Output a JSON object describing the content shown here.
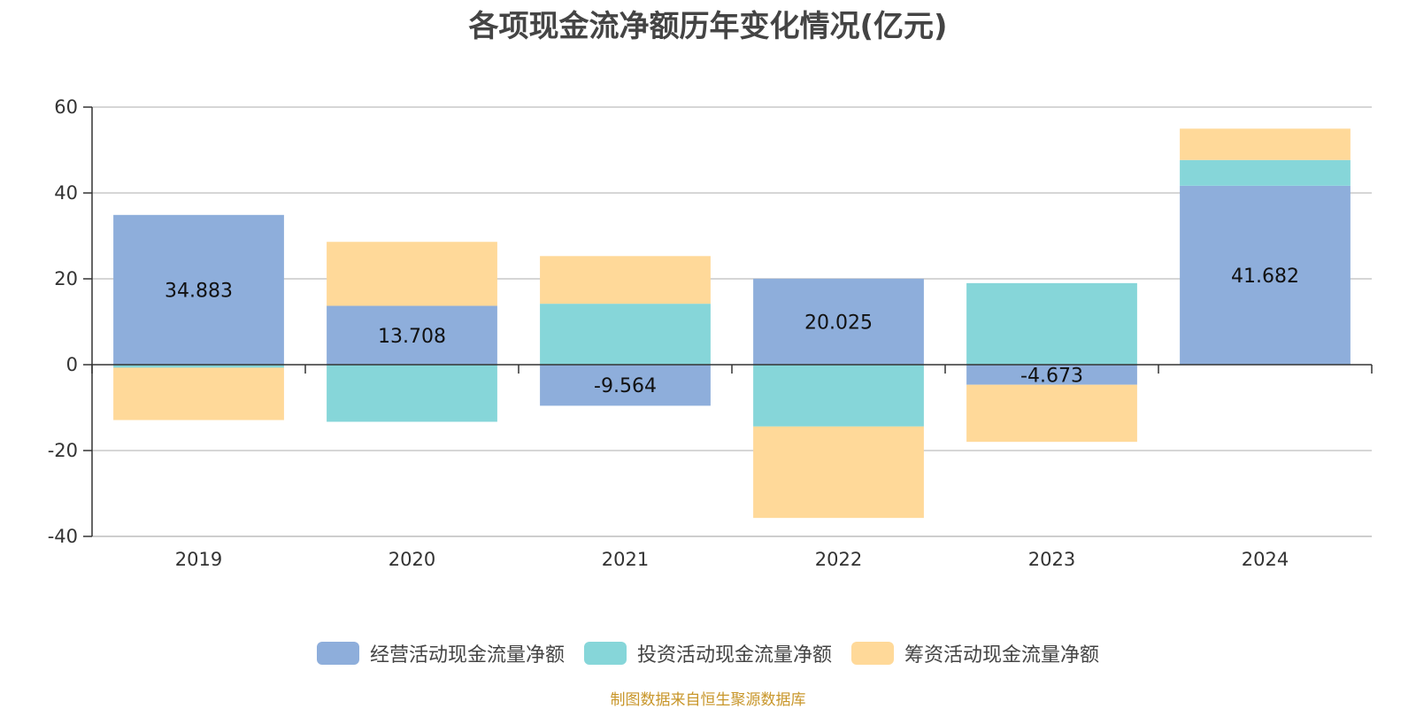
{
  "title": "各项现金流净额历年变化情况(亿元)",
  "source": "制图数据来自恒生聚源数据库",
  "colors": {
    "operating": "#8eaedb",
    "investing": "#86d6d9",
    "financing": "#ffd999",
    "source": "#c8962a"
  },
  "chart_data": {
    "type": "bar",
    "stacked": true,
    "categories": [
      "2019",
      "2020",
      "2021",
      "2022",
      "2023",
      "2024"
    ],
    "ylim": [
      -40,
      60
    ],
    "yticks": [
      60,
      40,
      20,
      0,
      -20,
      -40
    ],
    "grid": true,
    "legend_position": "bottom",
    "series": [
      {
        "name": "经营活动现金流量净额",
        "color_key": "operating",
        "values": [
          34.883,
          13.708,
          -9.564,
          20.025,
          -4.673,
          41.682
        ],
        "labels": [
          "34.883",
          "13.708",
          "-9.564",
          "20.025",
          "-4.673",
          "41.682"
        ]
      },
      {
        "name": "投资活动现金流量净额",
        "color_key": "investing",
        "values": [
          -0.7,
          -13.3,
          14.2,
          -14.4,
          19.0,
          6.0
        ]
      },
      {
        "name": "筹资活动现金流量净额",
        "color_key": "financing",
        "values": [
          -12.2,
          14.9,
          11.1,
          -21.3,
          -13.3,
          7.3
        ]
      }
    ]
  }
}
